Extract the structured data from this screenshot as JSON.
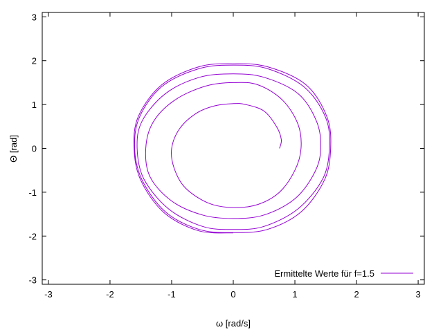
{
  "chart_data": {
    "type": "line",
    "xlabel": "ω [rad/s]",
    "ylabel": "Θ [rad]",
    "xlim": [
      -3.1,
      3.1
    ],
    "ylim": [
      -3.1,
      3.1
    ],
    "xticks": [
      -3,
      -2,
      -1,
      0,
      1,
      2,
      3
    ],
    "yticks": [
      -3,
      -2,
      -1,
      0,
      1,
      2,
      3
    ],
    "grid": false,
    "legend_position": "bottom-right",
    "series": [
      {
        "name": "Ermittelte Werte für f=1.5",
        "color": "#9400d3",
        "points": [
          [
            0.75,
            0.0
          ],
          [
            0.78,
            0.2
          ],
          [
            0.7,
            0.5
          ],
          [
            0.5,
            0.85
          ],
          [
            0.2,
            1.0
          ],
          [
            0.0,
            1.02
          ],
          [
            -0.3,
            0.97
          ],
          [
            -0.6,
            0.8
          ],
          [
            -0.87,
            0.45
          ],
          [
            -1.0,
            0.0
          ],
          [
            -0.96,
            -0.45
          ],
          [
            -0.78,
            -0.9
          ],
          [
            -0.4,
            -1.25
          ],
          [
            0.0,
            -1.35
          ],
          [
            0.4,
            -1.28
          ],
          [
            0.75,
            -1.0
          ],
          [
            1.0,
            -0.5
          ],
          [
            1.1,
            0.0
          ],
          [
            1.05,
            0.55
          ],
          [
            0.8,
            1.1
          ],
          [
            0.4,
            1.45
          ],
          [
            0.0,
            1.5
          ],
          [
            -0.45,
            1.42
          ],
          [
            -0.95,
            1.1
          ],
          [
            -1.3,
            0.6
          ],
          [
            -1.42,
            0.0
          ],
          [
            -1.35,
            -0.65
          ],
          [
            -1.0,
            -1.2
          ],
          [
            -0.5,
            -1.52
          ],
          [
            0.0,
            -1.6
          ],
          [
            0.5,
            -1.52
          ],
          [
            1.0,
            -1.15
          ],
          [
            1.32,
            -0.55
          ],
          [
            1.42,
            0.0
          ],
          [
            1.35,
            0.62
          ],
          [
            1.05,
            1.25
          ],
          [
            0.5,
            1.62
          ],
          [
            0.0,
            1.7
          ],
          [
            -0.55,
            1.62
          ],
          [
            -1.1,
            1.25
          ],
          [
            -1.48,
            0.62
          ],
          [
            -1.56,
            0.0
          ],
          [
            -1.45,
            -0.7
          ],
          [
            -1.05,
            -1.38
          ],
          [
            -0.5,
            -1.78
          ],
          [
            0.0,
            -1.85
          ],
          [
            0.5,
            -1.78
          ],
          [
            1.05,
            -1.38
          ],
          [
            1.45,
            -0.7
          ],
          [
            1.56,
            0.0
          ],
          [
            1.5,
            0.7
          ],
          [
            1.15,
            1.4
          ],
          [
            0.55,
            1.82
          ],
          [
            0.0,
            1.9
          ],
          [
            -0.55,
            1.82
          ],
          [
            -1.15,
            1.42
          ],
          [
            -1.52,
            0.72
          ],
          [
            -1.6,
            0.0
          ],
          [
            -1.48,
            -0.72
          ],
          [
            -1.1,
            -1.45
          ],
          [
            -0.55,
            -1.85
          ],
          [
            0.0,
            -1.92
          ],
          [
            0.55,
            -1.85
          ],
          [
            1.1,
            -1.45
          ],
          [
            1.48,
            -0.72
          ],
          [
            1.58,
            0.0
          ],
          [
            1.52,
            0.72
          ],
          [
            1.18,
            1.45
          ],
          [
            0.56,
            1.86
          ],
          [
            0.0,
            1.93
          ],
          [
            -0.56,
            1.86
          ],
          [
            -1.16,
            1.45
          ],
          [
            -1.54,
            0.73
          ],
          [
            -1.61,
            0.0
          ],
          [
            -1.5,
            -0.73
          ],
          [
            -1.12,
            -1.47
          ],
          [
            -0.56,
            -1.88
          ],
          [
            0.0,
            -1.93
          ]
        ]
      }
    ]
  }
}
